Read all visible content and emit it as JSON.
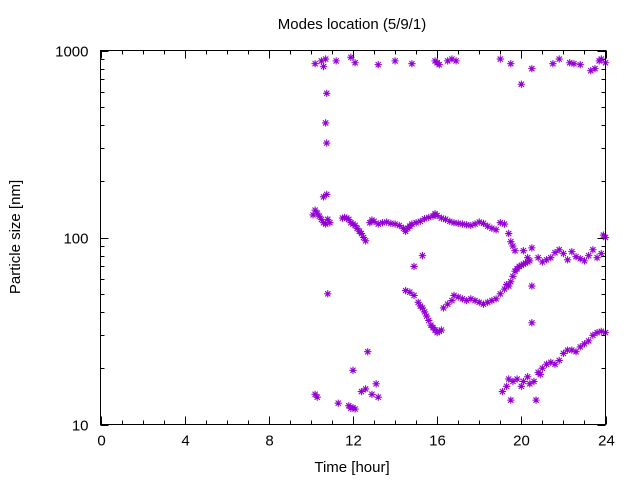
{
  "chart_data": {
    "type": "scatter",
    "title": "Modes location (5/9/1)",
    "xlabel": "Time [hour]",
    "ylabel": "Particle size [nm]",
    "xlim": [
      0,
      24
    ],
    "ylim": [
      10,
      1000
    ],
    "yscale": "log",
    "grid": false,
    "legend": "none",
    "x_ticks": [
      0,
      4,
      8,
      12,
      16,
      20,
      24
    ],
    "x_tick_labels": [
      "0",
      "4",
      "8",
      "12",
      "16",
      "20",
      "24"
    ],
    "y_ticks": [
      10,
      100,
      1000
    ],
    "y_tick_labels": [
      "10",
      "100",
      "1000"
    ],
    "marker_color": "#9400d3",
    "series": [
      {
        "points": [
          [
            10.2,
            850
          ],
          [
            10.5,
            880
          ],
          [
            10.6,
            820
          ],
          [
            10.7,
            900
          ],
          [
            11.2,
            880
          ],
          [
            11.9,
            920
          ],
          [
            12.1,
            860
          ],
          [
            13.2,
            840
          ],
          [
            14.0,
            880
          ],
          [
            14.8,
            850
          ],
          [
            15.9,
            880
          ],
          [
            16.0,
            860
          ],
          [
            16.1,
            840
          ],
          [
            16.5,
            880
          ],
          [
            16.7,
            900
          ],
          [
            16.9,
            880
          ],
          [
            19.0,
            900
          ],
          [
            19.5,
            850
          ],
          [
            20.0,
            660
          ],
          [
            20.5,
            800
          ],
          [
            21.5,
            850
          ],
          [
            21.8,
            900
          ],
          [
            22.3,
            860
          ],
          [
            22.5,
            850
          ],
          [
            22.8,
            840
          ],
          [
            23.3,
            780
          ],
          [
            23.5,
            800
          ],
          [
            23.7,
            880
          ],
          [
            23.8,
            900
          ],
          [
            24.0,
            860
          ],
          [
            10.75,
            590
          ],
          [
            10.7,
            410
          ],
          [
            10.75,
            320
          ],
          [
            10.6,
            165
          ],
          [
            10.75,
            170
          ],
          [
            10.8,
            50
          ]
        ]
      },
      {
        "points": [
          [
            10.1,
            132
          ],
          [
            10.2,
            140
          ],
          [
            10.3,
            135
          ],
          [
            10.4,
            130
          ],
          [
            10.5,
            125
          ],
          [
            10.6,
            120
          ],
          [
            10.7,
            118
          ],
          [
            10.8,
            125
          ],
          [
            10.9,
            120
          ],
          [
            11.5,
            127
          ],
          [
            11.6,
            128
          ],
          [
            11.7,
            127
          ],
          [
            11.8,
            125
          ],
          [
            11.9,
            120
          ],
          [
            12.0,
            118
          ],
          [
            12.1,
            116
          ],
          [
            12.2,
            112
          ],
          [
            12.3,
            108
          ],
          [
            12.4,
            105
          ],
          [
            12.5,
            100
          ],
          [
            12.6,
            96
          ],
          [
            12.8,
            120
          ],
          [
            12.9,
            124
          ],
          [
            13.0,
            122
          ],
          [
            13.2,
            118
          ],
          [
            13.4,
            120
          ],
          [
            13.6,
            121
          ],
          [
            13.8,
            119
          ],
          [
            14.0,
            118
          ],
          [
            14.2,
            116
          ],
          [
            14.4,
            112
          ],
          [
            14.5,
            108
          ],
          [
            14.6,
            112
          ],
          [
            14.7,
            115
          ],
          [
            14.8,
            118
          ],
          [
            15.0,
            120
          ],
          [
            15.2,
            122
          ],
          [
            15.4,
            126
          ],
          [
            15.6,
            128
          ],
          [
            15.8,
            130
          ],
          [
            15.9,
            134
          ],
          [
            16.0,
            131
          ],
          [
            16.2,
            127
          ],
          [
            16.4,
            125
          ],
          [
            16.6,
            122
          ],
          [
            16.8,
            120
          ],
          [
            17.0,
            119
          ],
          [
            17.2,
            118
          ],
          [
            17.4,
            117
          ],
          [
            17.6,
            116
          ],
          [
            17.8,
            118
          ],
          [
            18.0,
            121
          ],
          [
            18.2,
            119
          ],
          [
            18.4,
            115
          ],
          [
            18.6,
            112
          ],
          [
            18.8,
            110
          ],
          [
            19.0,
            120
          ],
          [
            19.2,
            118
          ],
          [
            19.4,
            105
          ],
          [
            19.5,
            95
          ],
          [
            19.6,
            90
          ],
          [
            19.7,
            85
          ],
          [
            20.1,
            85
          ],
          [
            20.3,
            78
          ],
          [
            20.5,
            88
          ],
          [
            20.8,
            78
          ],
          [
            21.0,
            74
          ],
          [
            21.2,
            76
          ],
          [
            21.4,
            78
          ],
          [
            21.6,
            83
          ],
          [
            21.8,
            86
          ],
          [
            22.0,
            82
          ],
          [
            22.2,
            76
          ],
          [
            22.4,
            84
          ],
          [
            22.6,
            79
          ],
          [
            22.8,
            77
          ],
          [
            23.0,
            75
          ],
          [
            23.2,
            80
          ],
          [
            23.4,
            86
          ],
          [
            23.6,
            78
          ],
          [
            23.8,
            82
          ],
          [
            23.9,
            103
          ],
          [
            24.0,
            100
          ]
        ]
      },
      {
        "points": [
          [
            15.3,
            80
          ],
          [
            14.9,
            70
          ],
          [
            14.5,
            52
          ],
          [
            14.7,
            51
          ],
          [
            14.9,
            49
          ],
          [
            15.1,
            45
          ],
          [
            15.2,
            43
          ],
          [
            15.3,
            42
          ],
          [
            15.4,
            40
          ],
          [
            15.5,
            38
          ],
          [
            15.6,
            36
          ],
          [
            15.7,
            34
          ],
          [
            15.8,
            33
          ],
          [
            15.9,
            32
          ],
          [
            16.0,
            31
          ],
          [
            16.1,
            31.5
          ],
          [
            16.2,
            32
          ],
          [
            16.3,
            42
          ],
          [
            16.5,
            44
          ],
          [
            16.7,
            46
          ],
          [
            16.8,
            49
          ],
          [
            17.0,
            48
          ],
          [
            17.2,
            47
          ],
          [
            17.4,
            46
          ],
          [
            17.6,
            47
          ],
          [
            17.8,
            46
          ],
          [
            18.0,
            45
          ],
          [
            18.2,
            44
          ],
          [
            18.4,
            45
          ],
          [
            18.6,
            46
          ],
          [
            18.8,
            47
          ],
          [
            19.0,
            50
          ],
          [
            19.2,
            53
          ],
          [
            19.3,
            56
          ],
          [
            19.4,
            55
          ],
          [
            19.5,
            58
          ],
          [
            19.6,
            62
          ],
          [
            19.7,
            66
          ],
          [
            19.8,
            68
          ],
          [
            19.9,
            70
          ],
          [
            20.0,
            71
          ],
          [
            20.1,
            72
          ],
          [
            20.2,
            73
          ],
          [
            20.3,
            74
          ],
          [
            20.4,
            75
          ],
          [
            20.5,
            55
          ]
        ]
      },
      {
        "points": [
          [
            10.2,
            14.5
          ],
          [
            10.3,
            14.0
          ],
          [
            11.3,
            13.0
          ],
          [
            11.8,
            12.6
          ],
          [
            11.9,
            12.2
          ],
          [
            12.0,
            12.3
          ],
          [
            12.1,
            12.1
          ],
          [
            12.0,
            19.5
          ],
          [
            12.4,
            15.0
          ],
          [
            12.6,
            15.5
          ],
          [
            12.7,
            24.5
          ],
          [
            12.9,
            14.5
          ],
          [
            13.1,
            16.5
          ],
          [
            13.2,
            14.0
          ],
          [
            19.1,
            15.0
          ],
          [
            19.3,
            16.0
          ],
          [
            19.4,
            17.5
          ],
          [
            19.5,
            13.5
          ],
          [
            19.6,
            17.0
          ],
          [
            19.8,
            17.5
          ],
          [
            20.0,
            16.0
          ],
          [
            20.1,
            17.0
          ],
          [
            20.3,
            18.0
          ],
          [
            20.4,
            16.5
          ],
          [
            20.5,
            35.0
          ],
          [
            20.6,
            17.0
          ],
          [
            20.7,
            13.5
          ],
          [
            20.8,
            19.0
          ],
          [
            20.9,
            18.5
          ],
          [
            21.0,
            20.0
          ],
          [
            21.2,
            21.0
          ],
          [
            21.4,
            21.5
          ],
          [
            21.6,
            21.0
          ],
          [
            21.8,
            22.0
          ],
          [
            22.0,
            24.0
          ],
          [
            22.2,
            25.0
          ],
          [
            22.4,
            25.0
          ],
          [
            22.6,
            24.5
          ],
          [
            22.8,
            26.0
          ],
          [
            23.0,
            27.0
          ],
          [
            23.2,
            28.0
          ],
          [
            23.4,
            30.0
          ],
          [
            23.6,
            31.0
          ],
          [
            23.8,
            31.5
          ],
          [
            24.0,
            31.0
          ]
        ]
      }
    ]
  }
}
